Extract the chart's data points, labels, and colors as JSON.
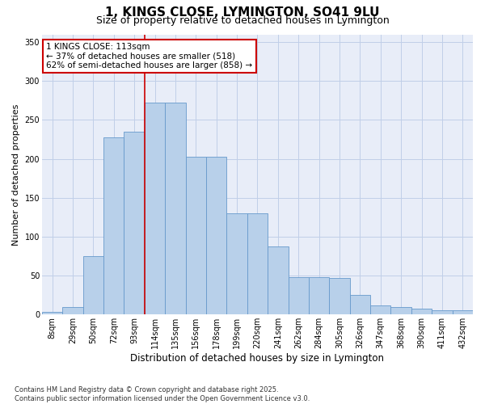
{
  "title": "1, KINGS CLOSE, LYMINGTON, SO41 9LU",
  "subtitle": "Size of property relative to detached houses in Lymington",
  "xlabel": "Distribution of detached houses by size in Lymington",
  "ylabel": "Number of detached properties",
  "categories": [
    "8sqm",
    "29sqm",
    "50sqm",
    "72sqm",
    "93sqm",
    "114sqm",
    "135sqm",
    "156sqm",
    "178sqm",
    "199sqm",
    "220sqm",
    "241sqm",
    "262sqm",
    "284sqm",
    "305sqm",
    "326sqm",
    "347sqm",
    "368sqm",
    "390sqm",
    "411sqm",
    "432sqm"
  ],
  "bar_heights": [
    3,
    10,
    75,
    228,
    235,
    272,
    272,
    203,
    203,
    130,
    130,
    87,
    48,
    48,
    47,
    25,
    12,
    10,
    8,
    6,
    5
  ],
  "bar_color": "#b8d0ea",
  "bar_edge_color": "#6699cc",
  "grid_color": "#c0cfe8",
  "background_color": "#e8edf8",
  "annotation_text": "1 KINGS CLOSE: 113sqm\n← 37% of detached houses are smaller (518)\n62% of semi-detached houses are larger (858) →",
  "annotation_box_color": "#ffffff",
  "annotation_border_color": "#cc0000",
  "property_bar_idx": 5,
  "ylim": [
    0,
    360
  ],
  "yticks": [
    0,
    50,
    100,
    150,
    200,
    250,
    300,
    350
  ],
  "footnote": "Contains HM Land Registry data © Crown copyright and database right 2025.\nContains public sector information licensed under the Open Government Licence v3.0.",
  "title_fontsize": 11,
  "subtitle_fontsize": 9,
  "xlabel_fontsize": 8.5,
  "ylabel_fontsize": 8,
  "annot_fontsize": 7.5,
  "tick_fontsize": 7,
  "footnote_fontsize": 6
}
